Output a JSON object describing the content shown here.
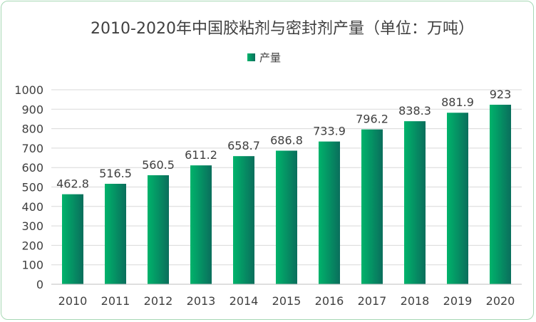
{
  "chart_data": {
    "type": "bar",
    "title": "2010-2020年中国胶粘剂与密封剂产量（单位：万吨）",
    "categories": [
      "2010",
      "2011",
      "2012",
      "2013",
      "2014",
      "2015",
      "2016",
      "2017",
      "2018",
      "2019",
      "2020"
    ],
    "series": [
      {
        "name": "产量",
        "values": [
          462.8,
          516.5,
          560.5,
          611.2,
          658.7,
          686.8,
          733.9,
          796.2,
          838.3,
          881.9,
          923
        ],
        "labels": [
          "462.8",
          "516.5",
          "560.5",
          "611.2",
          "658.7",
          "686.8",
          "733.9",
          "796.2",
          "838.3",
          "881.9",
          "923"
        ],
        "color_left": "#00b36b",
        "color_right": "#0a6e5c"
      }
    ],
    "ylim": [
      0,
      1000
    ],
    "yticks": [
      0,
      100,
      200,
      300,
      400,
      500,
      600,
      700,
      800,
      900,
      1000
    ],
    "grid": true,
    "legend_position": "top-center",
    "data_labels": true
  }
}
